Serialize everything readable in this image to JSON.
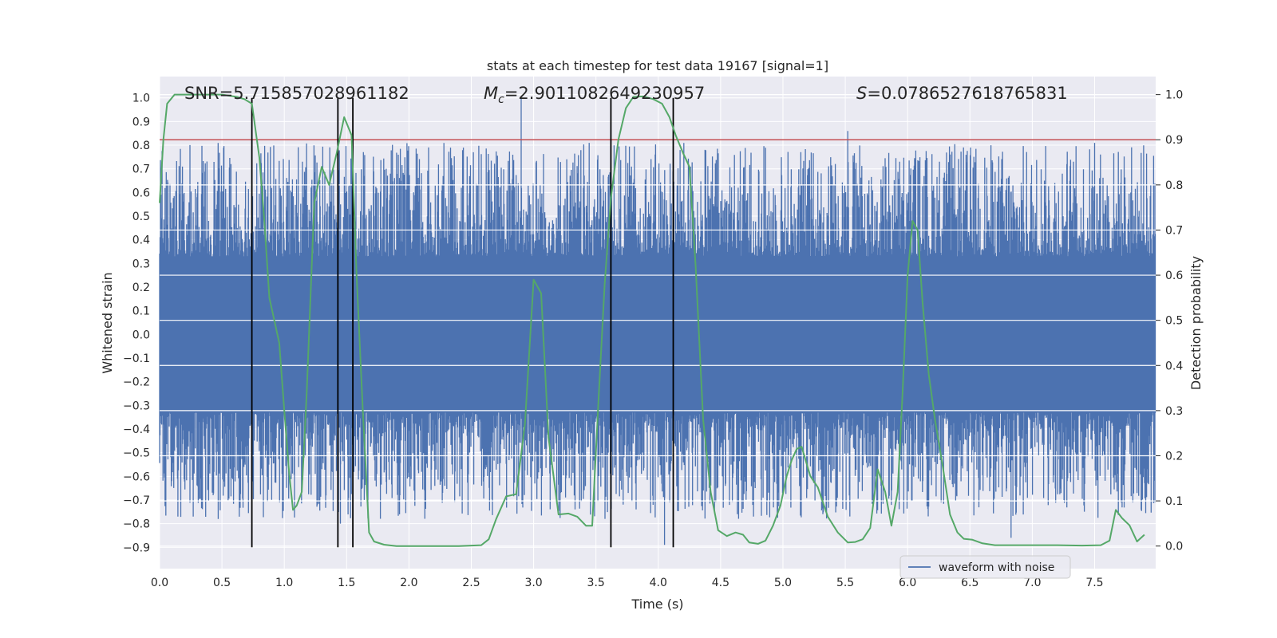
{
  "chart_data": {
    "type": "line",
    "title": "stats at each timestep for test data 19167 [signal=1]",
    "xlabel": "Time (s)",
    "ylabel_left": "Whitened strain",
    "ylabel_right": "Detection probability",
    "xlim": [
      0.0,
      7.99
    ],
    "ylim_left": [
      -0.99,
      1.09
    ],
    "ylim_right": [
      -0.05,
      1.04
    ],
    "x_ticks": [
      0.0,
      0.5,
      1.0,
      1.5,
      2.0,
      2.5,
      3.0,
      3.5,
      4.0,
      4.5,
      5.0,
      5.5,
      6.0,
      6.5,
      7.0,
      7.5
    ],
    "x_tick_labels": [
      "0.0",
      "0.5",
      "1.0",
      "1.5",
      "2.0",
      "2.5",
      "3.0",
      "3.5",
      "4.0",
      "4.5",
      "5.0",
      "5.5",
      "6.0",
      "6.5",
      "7.0",
      "7.5"
    ],
    "y_left_ticks": [
      1.0,
      0.9,
      0.8,
      0.7,
      0.6,
      0.5,
      0.4,
      0.3,
      0.2,
      0.1,
      0.0,
      -0.1,
      -0.2,
      -0.3,
      -0.4,
      -0.5,
      -0.6,
      -0.7,
      -0.8,
      -0.9
    ],
    "y_left_tick_labels": [
      "1.0",
      "0.9",
      "0.8",
      "0.7",
      "0.6",
      "0.5",
      "0.4",
      "0.3",
      "0.2",
      "0.1",
      "0.0",
      "−0.1",
      "−0.2",
      "−0.3",
      "−0.4",
      "−0.5",
      "−0.6",
      "−0.7",
      "−0.8",
      "−0.9"
    ],
    "y_right_ticks": [
      1.0,
      0.9,
      0.8,
      0.7,
      0.6,
      0.5,
      0.4,
      0.3,
      0.2,
      0.1,
      0.0
    ],
    "y_right_tick_labels": [
      "1.0",
      "0.9",
      "0.8",
      "0.7",
      "0.6",
      "0.5",
      "0.4",
      "0.3",
      "0.2",
      "0.1",
      "0.0"
    ],
    "annotations": {
      "snr": "SNR=5.715857028961182",
      "mc_symbol": "M",
      "mc_sub": "c",
      "mc_value": "=2.9011082649230957",
      "s_symbol": "S",
      "s_value": "=0.0786527618765831"
    },
    "threshold": {
      "value": 0.9,
      "axis": "right",
      "color": "#c44e52"
    },
    "vertical_lines_x": [
      0.74,
      1.43,
      1.55,
      3.62,
      4.12
    ],
    "vertical_line_range": [
      -0.9,
      1.0
    ],
    "waveform": {
      "name": "waveform with noise",
      "color": "#4c72b0",
      "core_amplitude": 0.33,
      "notable_spikes": [
        {
          "x": 0.47,
          "y": -0.78
        },
        {
          "x": 1.45,
          "y": -0.8
        },
        {
          "x": 2.9,
          "y": 1.0
        },
        {
          "x": 4.05,
          "y": -0.89
        },
        {
          "x": 5.52,
          "y": 0.86
        },
        {
          "x": 6.83,
          "y": -0.86
        },
        {
          "x": 7.5,
          "y": 0.81
        }
      ]
    },
    "probability": {
      "name": "detection probability",
      "color": "#55a868",
      "x": [
        0.0,
        0.03,
        0.06,
        0.12,
        0.3,
        0.5,
        0.62,
        0.68,
        0.74,
        0.8,
        0.84,
        0.88,
        0.92,
        0.96,
        1.0,
        1.04,
        1.07,
        1.1,
        1.14,
        1.18,
        1.24,
        1.3,
        1.36,
        1.42,
        1.48,
        1.54,
        1.58,
        1.63,
        1.68,
        1.72,
        1.8,
        1.9,
        2.0,
        2.2,
        2.4,
        2.58,
        2.64,
        2.7,
        2.78,
        2.86,
        2.93,
        3.0,
        3.06,
        3.12,
        3.2,
        3.28,
        3.35,
        3.42,
        3.47,
        3.52,
        3.57,
        3.62,
        3.68,
        3.74,
        3.8,
        3.88,
        3.96,
        4.03,
        4.09,
        4.14,
        4.2,
        4.25,
        4.3,
        4.36,
        4.42,
        4.48,
        4.55,
        4.62,
        4.68,
        4.73,
        4.8,
        4.86,
        4.92,
        4.98,
        5.03,
        5.07,
        5.11,
        5.15,
        5.22,
        5.28,
        5.36,
        5.44,
        5.52,
        5.58,
        5.64,
        5.7,
        5.76,
        5.82,
        5.87,
        5.92,
        5.96,
        6.0,
        6.04,
        6.08,
        6.12,
        6.17,
        6.22,
        6.28,
        6.34,
        6.4,
        6.45,
        6.52,
        6.6,
        6.7,
        6.8,
        7.0,
        7.2,
        7.4,
        7.55,
        7.62,
        7.67,
        7.72,
        7.78,
        7.84,
        7.9
      ],
      "y": [
        0.76,
        0.9,
        0.98,
        1.0,
        1.0,
        1.0,
        0.995,
        0.99,
        0.98,
        0.86,
        0.72,
        0.55,
        0.5,
        0.45,
        0.3,
        0.16,
        0.08,
        0.09,
        0.12,
        0.34,
        0.76,
        0.84,
        0.8,
        0.87,
        0.95,
        0.91,
        0.6,
        0.3,
        0.03,
        0.01,
        0.003,
        0.0,
        0.0,
        0.0,
        0.0,
        0.002,
        0.015,
        0.06,
        0.11,
        0.115,
        0.27,
        0.59,
        0.56,
        0.24,
        0.07,
        0.072,
        0.065,
        0.045,
        0.045,
        0.32,
        0.58,
        0.77,
        0.9,
        0.97,
        0.995,
        0.996,
        0.99,
        0.98,
        0.95,
        0.91,
        0.87,
        0.84,
        0.62,
        0.28,
        0.12,
        0.035,
        0.022,
        0.03,
        0.025,
        0.008,
        0.005,
        0.012,
        0.045,
        0.09,
        0.155,
        0.19,
        0.215,
        0.22,
        0.155,
        0.13,
        0.065,
        0.03,
        0.008,
        0.009,
        0.015,
        0.04,
        0.17,
        0.12,
        0.045,
        0.12,
        0.34,
        0.6,
        0.72,
        0.7,
        0.54,
        0.38,
        0.28,
        0.18,
        0.07,
        0.03,
        0.016,
        0.014,
        0.006,
        0.002,
        0.002,
        0.002,
        0.002,
        0.001,
        0.002,
        0.012,
        0.08,
        0.062,
        0.046,
        0.01,
        0.025
      ]
    },
    "legend": {
      "position": "lower-right",
      "entries": [
        "waveform with noise"
      ]
    },
    "grid": true,
    "background": "#eaeaf2"
  }
}
